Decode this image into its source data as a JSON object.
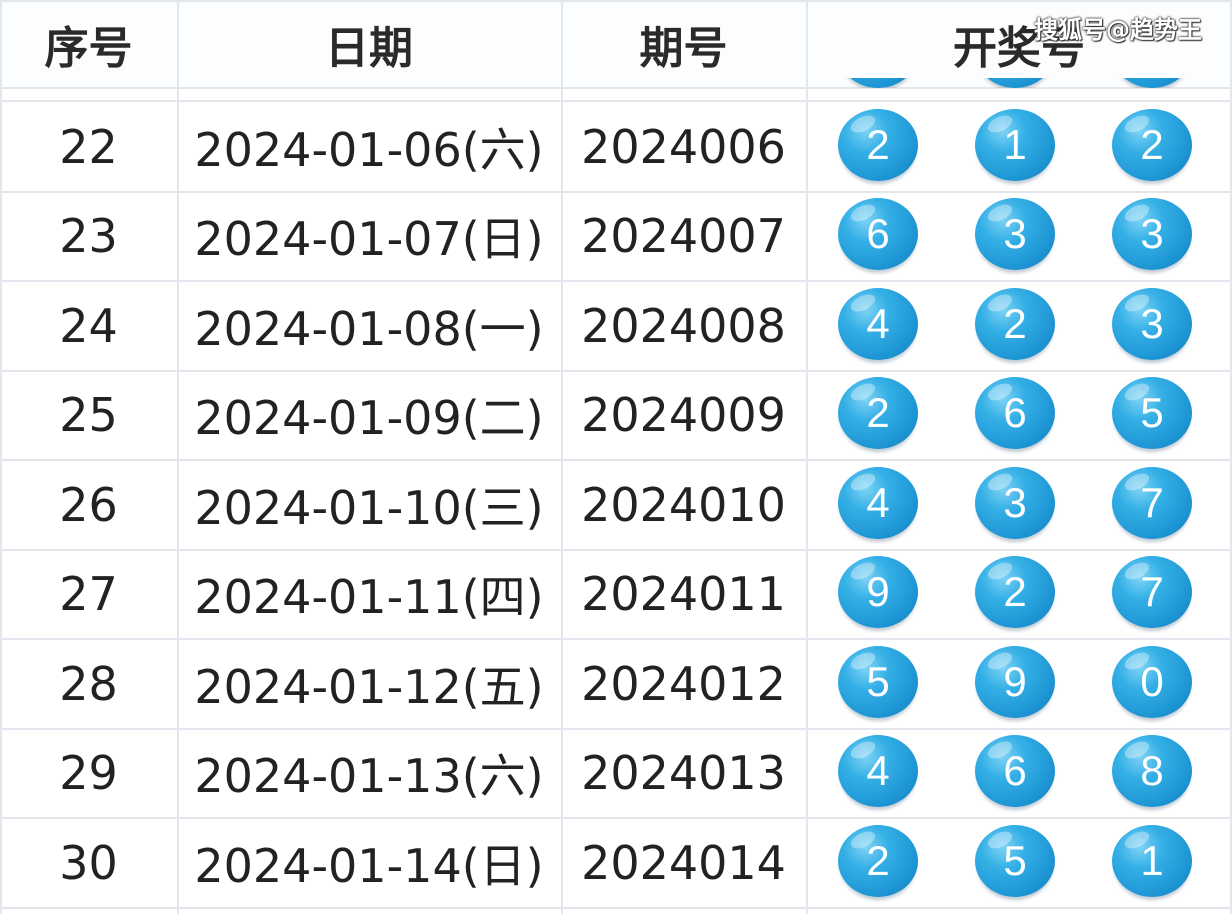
{
  "watermark": "搜狐号@趋势王",
  "headers": {
    "index": "序号",
    "date": "日期",
    "issue": "期号",
    "numbers": "开奖号"
  },
  "ball_color": "#1d95d4",
  "rows": [
    {
      "index": "22",
      "date": "2024-01-06(六)",
      "issue": "2024006",
      "numbers": [
        "2",
        "1",
        "2"
      ]
    },
    {
      "index": "23",
      "date": "2024-01-07(日)",
      "issue": "2024007",
      "numbers": [
        "6",
        "3",
        "3"
      ]
    },
    {
      "index": "24",
      "date": "2024-01-08(一)",
      "issue": "2024008",
      "numbers": [
        "4",
        "2",
        "3"
      ]
    },
    {
      "index": "25",
      "date": "2024-01-09(二)",
      "issue": "2024009",
      "numbers": [
        "2",
        "6",
        "5"
      ]
    },
    {
      "index": "26",
      "date": "2024-01-10(三)",
      "issue": "2024010",
      "numbers": [
        "4",
        "3",
        "7"
      ]
    },
    {
      "index": "27",
      "date": "2024-01-11(四)",
      "issue": "2024011",
      "numbers": [
        "9",
        "2",
        "7"
      ]
    },
    {
      "index": "28",
      "date": "2024-01-12(五)",
      "issue": "2024012",
      "numbers": [
        "5",
        "9",
        "0"
      ]
    },
    {
      "index": "29",
      "date": "2024-01-13(六)",
      "issue": "2024013",
      "numbers": [
        "4",
        "6",
        "8"
      ]
    },
    {
      "index": "30",
      "date": "2024-01-14(日)",
      "issue": "2024014",
      "numbers": [
        "2",
        "5",
        "1"
      ]
    }
  ]
}
